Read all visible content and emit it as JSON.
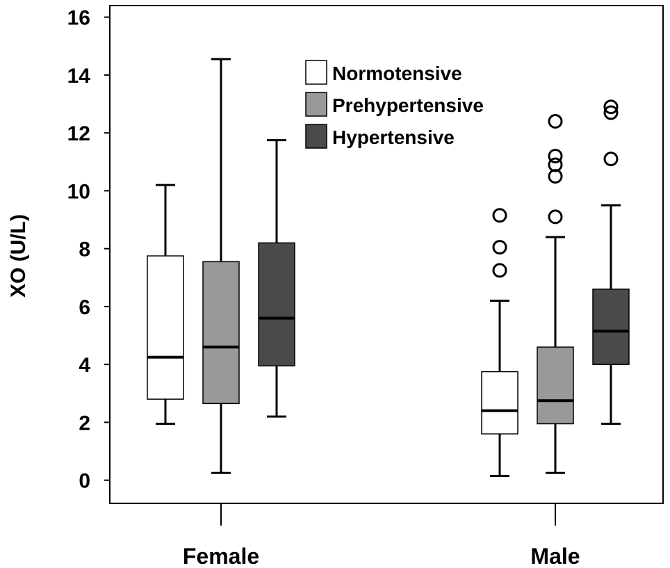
{
  "chart_data": {
    "type": "box",
    "ylabel": "XO (U/L)",
    "xlabel": "",
    "ylim": [
      -0.8,
      16.4
    ],
    "yticks": [
      0,
      2,
      4,
      6,
      8,
      10,
      12,
      14,
      16
    ],
    "categories": [
      "Female",
      "Male"
    ],
    "legend_placement": "top-center",
    "series": [
      {
        "name": "Normotensive",
        "color": "#ffffff",
        "boxes": [
          {
            "category": "Female",
            "whisker_low": 1.95,
            "q1": 2.8,
            "median": 4.25,
            "q3": 7.75,
            "whisker_high": 10.2,
            "outliers": []
          },
          {
            "category": "Male",
            "whisker_low": 0.15,
            "q1": 1.6,
            "median": 2.4,
            "q3": 3.75,
            "whisker_high": 6.2,
            "outliers": [
              7.25,
              8.05,
              9.15
            ]
          }
        ]
      },
      {
        "name": "Prehypertensive",
        "color": "#999999",
        "boxes": [
          {
            "category": "Female",
            "whisker_low": 0.25,
            "q1": 2.65,
            "median": 4.6,
            "q3": 7.55,
            "whisker_high": 14.55,
            "outliers": []
          },
          {
            "category": "Male",
            "whisker_low": 0.25,
            "q1": 1.95,
            "median": 2.75,
            "q3": 4.6,
            "whisker_high": 8.4,
            "outliers": [
              9.1,
              10.5,
              10.9,
              11.2,
              12.4
            ]
          }
        ]
      },
      {
        "name": "Hypertensive",
        "color": "#4a4a4a",
        "boxes": [
          {
            "category": "Female",
            "whisker_low": 2.2,
            "q1": 3.95,
            "median": 5.6,
            "q3": 8.2,
            "whisker_high": 11.75,
            "outliers": []
          },
          {
            "category": "Male",
            "whisker_low": 1.95,
            "q1": 4.0,
            "median": 5.15,
            "q3": 6.6,
            "whisker_high": 9.5,
            "outliers": [
              11.1,
              12.7,
              12.9
            ]
          }
        ]
      }
    ]
  }
}
